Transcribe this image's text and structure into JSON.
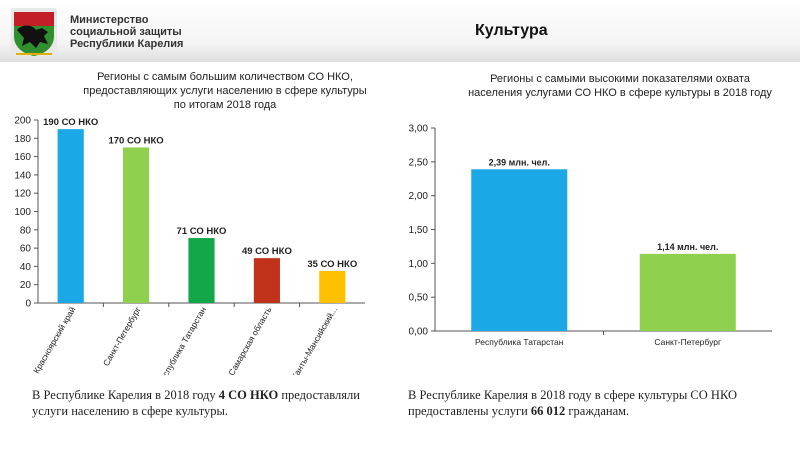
{
  "header": {
    "org_lines": [
      "Министерство",
      "социальной защиты",
      "Республики Карелия"
    ],
    "section_title": "Культура"
  },
  "colors": {
    "blue": "#1aa8e6",
    "light_green": "#8fd14f",
    "green": "#13a74a",
    "red": "#c0321a",
    "orange": "#ffc000",
    "emblem_green": "#2f8f2f",
    "emblem_red": "#c22026"
  },
  "chart_data": [
    {
      "type": "bar",
      "title_lines": [
        "Регионы с самым большим количеством СО НКО,",
        "предоставляющих услуги населению в сфере культуры",
        "по итогам 2018 года"
      ],
      "categories": [
        "Красноярский край",
        "Санкт-Петербург",
        "Республика Татарстан",
        "Самарская область",
        "Ханты-Мансийский..."
      ],
      "values": [
        190,
        170,
        71,
        49,
        35
      ],
      "data_labels": [
        "190 СО НКО",
        "170 СО НКО",
        "71 СО НКО",
        "49 СО НКО",
        "35 СО НКО"
      ],
      "bar_colors": [
        "#1aa8e6",
        "#8fd14f",
        "#13a74a",
        "#c0321a",
        "#ffc000"
      ],
      "ylim": [
        0,
        200
      ],
      "yticks": [
        0,
        20,
        40,
        60,
        80,
        100,
        120,
        140,
        160,
        180,
        200
      ],
      "ytick_labels": [
        "0",
        "20",
        "40",
        "60",
        "80",
        "100",
        "120",
        "140",
        "160",
        "180",
        "200"
      ],
      "grid": false
    },
    {
      "type": "bar",
      "title_lines": [
        "Регионы с самыми высокими показателями охвата",
        "населения услугами СО НКО в сфере культуры в 2018 году"
      ],
      "categories": [
        "Республика Татарстан",
        "Санкт-Петербург"
      ],
      "values": [
        2.39,
        1.14
      ],
      "data_labels": [
        "2,39 млн. чел.",
        "1,14 млн. чел."
      ],
      "bar_colors": [
        "#1aa8e6",
        "#8fd14f"
      ],
      "ylim": [
        0,
        3
      ],
      "yticks": [
        0,
        0.5,
        1,
        1.5,
        2,
        2.5,
        3
      ],
      "ytick_labels": [
        "0,00",
        "0,50",
        "1,00",
        "1,50",
        "2,00",
        "2,50",
        "3,00"
      ],
      "grid": false
    }
  ],
  "notes": {
    "left": {
      "line1_prefix": "В Республике Карелия в 2018 году ",
      "line1_bold": "4 СО НКО",
      "line1_suffix": " предоставляли",
      "line2": "услуги населению в сфере культуры."
    },
    "right": {
      "line1": "В Республике Карелия в 2018 году в сфере культуры СО НКО",
      "line2_prefix": "предоставлены услуги ",
      "line2_bold": "66 012",
      "line2_suffix": " гражданам."
    }
  }
}
